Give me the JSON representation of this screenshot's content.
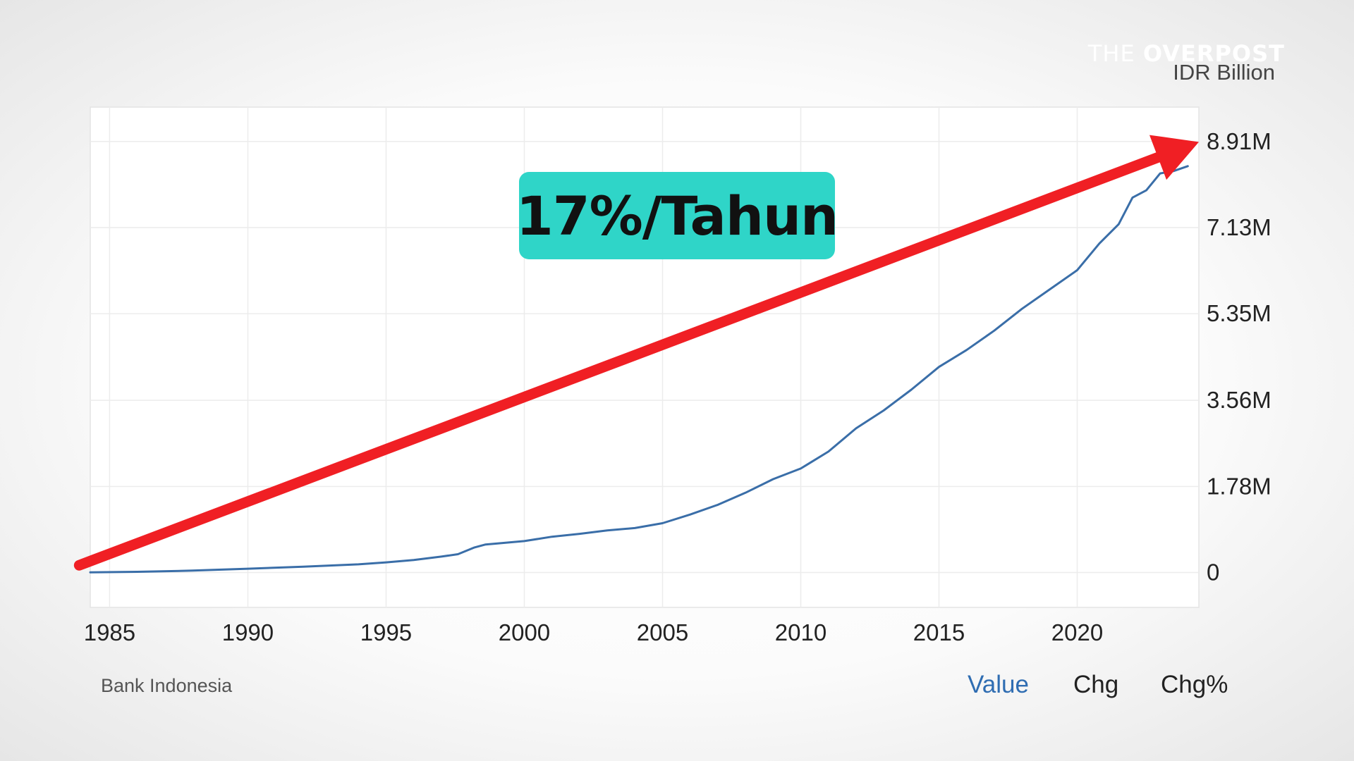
{
  "watermark": {
    "light": "THE ",
    "bold": "OVERPOST"
  },
  "annotation": {
    "label": "17%/Tahun",
    "badge_color": "#2fd5c8",
    "arrow_color": "#f01f24"
  },
  "footer": {
    "source": "Bank Indonesia",
    "tabs": [
      {
        "label": "Value",
        "active": true
      },
      {
        "label": "Chg",
        "active": false
      },
      {
        "label": "Chg%",
        "active": false
      }
    ],
    "active_color": "#2f6db2",
    "inactive_color": "#222222"
  },
  "chart_data": {
    "type": "line",
    "title": "",
    "xlabel": "",
    "ylabel": "IDR Billion",
    "xlim": [
      1984.3,
      2024.4
    ],
    "ylim": [
      -720000,
      9620000
    ],
    "x_ticks": [
      1985,
      1990,
      1995,
      2000,
      2005,
      2010,
      2015,
      2020
    ],
    "y_ticks": [
      {
        "value": 0,
        "label": "0"
      },
      {
        "value": 1780000,
        "label": "1.78M"
      },
      {
        "value": 3560000,
        "label": "3.56M"
      },
      {
        "value": 5350000,
        "label": "5.35M"
      },
      {
        "value": 7130000,
        "label": "7.13M"
      },
      {
        "value": 8910000,
        "label": "8.91M"
      }
    ],
    "grid": true,
    "line_color": "#3a6ea8",
    "series": [
      {
        "points": [
          [
            1984.3,
            5000
          ],
          [
            1986,
            15000
          ],
          [
            1988,
            40000
          ],
          [
            1990,
            80000
          ],
          [
            1992,
            120000
          ],
          [
            1994,
            170000
          ],
          [
            1995,
            210000
          ],
          [
            1996,
            260000
          ],
          [
            1997,
            330000
          ],
          [
            1997.6,
            380000
          ],
          [
            1998.2,
            520000
          ],
          [
            1998.6,
            580000
          ],
          [
            1999,
            600000
          ],
          [
            2000,
            650000
          ],
          [
            2001,
            740000
          ],
          [
            2002,
            800000
          ],
          [
            2003,
            870000
          ],
          [
            2004,
            920000
          ],
          [
            2005,
            1020000
          ],
          [
            2006,
            1200000
          ],
          [
            2007,
            1400000
          ],
          [
            2008,
            1650000
          ],
          [
            2009,
            1930000
          ],
          [
            2010,
            2150000
          ],
          [
            2011,
            2500000
          ],
          [
            2012,
            2980000
          ],
          [
            2013,
            3350000
          ],
          [
            2014,
            3780000
          ],
          [
            2015,
            4250000
          ],
          [
            2016,
            4600000
          ],
          [
            2017,
            5000000
          ],
          [
            2018,
            5450000
          ],
          [
            2019,
            5850000
          ],
          [
            2020,
            6250000
          ],
          [
            2020.8,
            6800000
          ],
          [
            2021.5,
            7200000
          ],
          [
            2022,
            7750000
          ],
          [
            2022.5,
            7900000
          ],
          [
            2023,
            8250000
          ],
          [
            2023.5,
            8300000
          ],
          [
            2024,
            8400000
          ]
        ]
      }
    ],
    "trend_arrow": {
      "from": [
        1983.9,
        150000
      ],
      "to": [
        2024.4,
        8900000
      ]
    }
  }
}
